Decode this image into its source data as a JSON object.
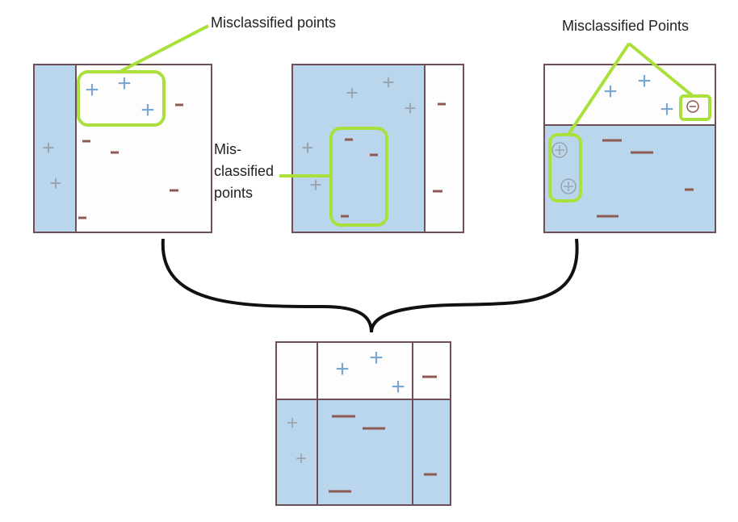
{
  "colors": {
    "region_blue": "#b9d6ec",
    "region_white": "#fdfdfd",
    "frame": "#6e4f55",
    "plus_blue": "#7aa7cf",
    "plus_gray": "#9aa3ab",
    "minus_brown": "#8f5a54",
    "highlight": "#a9e03b",
    "connector": "#111111",
    "label": "#222222"
  },
  "labels": {
    "top_callout": "Misclassified points",
    "side_callout_line1": "Mis-",
    "side_callout_line2": "classified",
    "side_callout_line3": "points",
    "right_callout": "Misclassified Points"
  },
  "symbols": {
    "plus": "+",
    "minus": "−"
  },
  "panels": [
    {
      "id": "stump-1",
      "split": "vertical boundary: left strip classified +"
    },
    {
      "id": "stump-2",
      "split": "vertical boundary: right strip classified −"
    },
    {
      "id": "stump-3",
      "split": "horizontal boundary: top classified +"
    },
    {
      "id": "ensemble",
      "split": "combined boundaries"
    }
  ]
}
